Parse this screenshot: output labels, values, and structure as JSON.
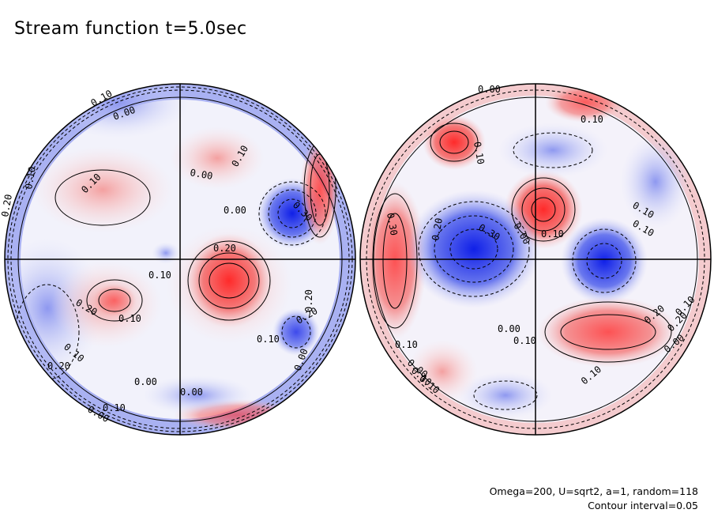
{
  "title": "Stream function t=5.0sec",
  "footer": {
    "params": "Omega=200, U=sqrt2, a=1, random=118",
    "interval": "Contour interval=0.05"
  },
  "colors": {
    "positive": "#e8303a",
    "negative": "#2030e0",
    "zero": "#ffffff"
  },
  "left_hemisphere_labels": [
    "0.10",
    "0.00",
    "0.10",
    "0.10",
    "0.00",
    "0.10",
    "0.00",
    "0.30",
    "0.20",
    "0.10",
    "0.20",
    "0.10",
    "0.10",
    "0.20",
    "0.00",
    "0.10",
    "0.20",
    "0.00",
    "0.00",
    "0.20",
    "0.20",
    "0.10",
    "0.00"
  ],
  "right_hemisphere_labels": [
    "0.00",
    "0.10",
    "0.10",
    "0.00",
    "0.10",
    "0.30",
    "0.20",
    "0.30",
    "0.10",
    "0.10",
    "0.00",
    "0.10",
    "0.20",
    "0.00",
    "0.10",
    "0.10",
    "0.00",
    "0.20",
    "0.10",
    "0.10",
    "0.10"
  ]
}
